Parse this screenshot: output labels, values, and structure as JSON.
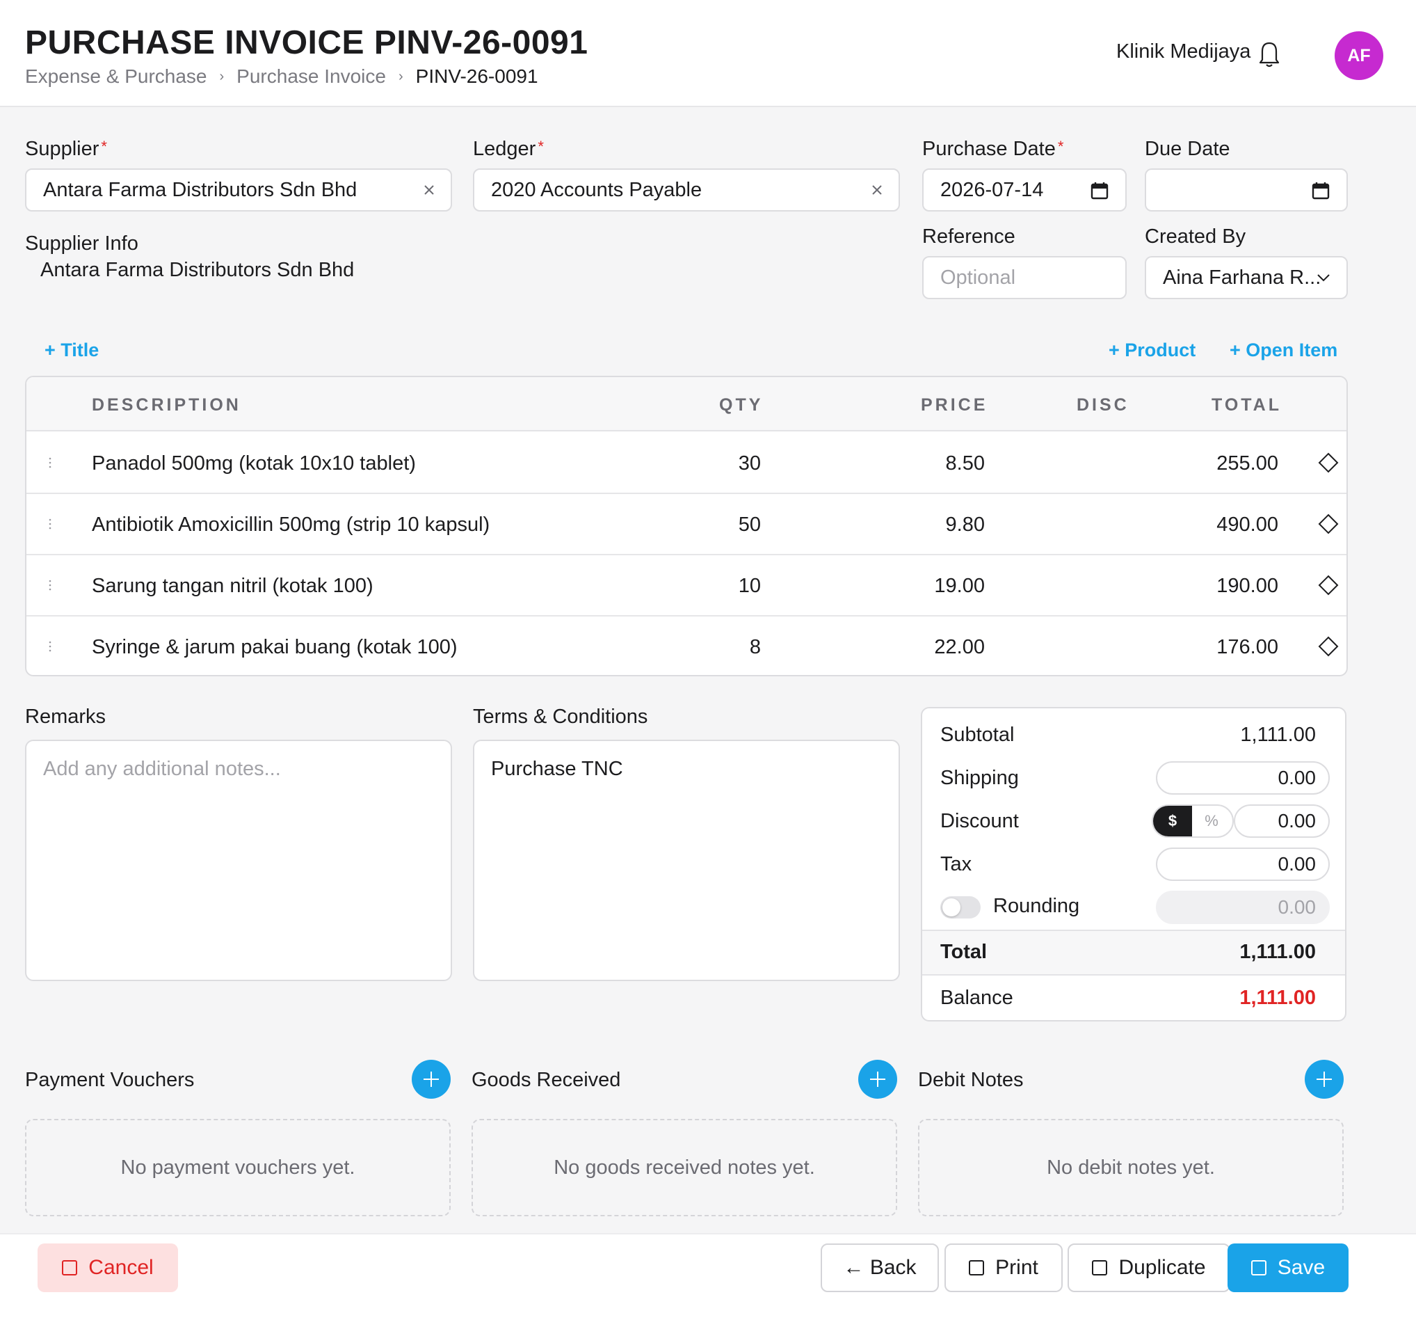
{
  "header": {
    "title": "PURCHASE INVOICE PINV-26-0091",
    "breadcrumb": [
      "Expense & Purchase",
      "Purchase Invoice",
      "PINV-26-0091"
    ],
    "clinic_name": "Klinik Medijaya",
    "avatar_initials": "AF",
    "avatar_color": "#c62ad0"
  },
  "form": {
    "supplier": {
      "label": "Supplier",
      "value": "Antara Farma Distributors Sdn Bhd"
    },
    "ledger": {
      "label": "Ledger",
      "value": "2020 Accounts Payable"
    },
    "purchase_date": {
      "label": "Purchase Date",
      "value": "2026-07-14"
    },
    "due_date": {
      "label": "Due Date",
      "value": ""
    },
    "supplier_info": {
      "label": "Supplier Info",
      "value": "Antara Farma Distributors Sdn Bhd"
    },
    "reference": {
      "label": "Reference",
      "placeholder": "Optional"
    },
    "created_by": {
      "label": "Created By",
      "value": "Aina Farhana R..."
    }
  },
  "actions": {
    "add_title": "+ Title",
    "add_product": "+ Product",
    "add_open_item": "+ Open Item"
  },
  "items_table": {
    "columns": [
      "DESCRIPTION",
      "QTY",
      "PRICE",
      "DISC",
      "TOTAL"
    ],
    "rows": [
      {
        "description": "Panadol 500mg (kotak 10x10 tablet)",
        "qty": "30",
        "price": "8.50",
        "disc": "",
        "total": "255.00"
      },
      {
        "description": "Antibiotik Amoxicillin 500mg (strip 10 kapsul)",
        "qty": "50",
        "price": "9.80",
        "disc": "",
        "total": "490.00"
      },
      {
        "description": "Sarung tangan nitril (kotak 100)",
        "qty": "10",
        "price": "19.00",
        "disc": "",
        "total": "190.00"
      },
      {
        "description": "Syringe & jarum pakai buang (kotak 100)",
        "qty": "8",
        "price": "22.00",
        "disc": "",
        "total": "176.00"
      }
    ]
  },
  "remarks": {
    "label": "Remarks",
    "placeholder": "Add any additional notes..."
  },
  "terms": {
    "label": "Terms & Conditions",
    "value": "Purchase TNC"
  },
  "totals": {
    "subtotal_label": "Subtotal",
    "subtotal": "1,111.00",
    "shipping_label": "Shipping",
    "shipping": "0.00",
    "discount_label": "Discount",
    "discount": "0.00",
    "discount_mode_fixed": "$",
    "discount_mode_percent": "%",
    "tax_label": "Tax",
    "tax": "0.00",
    "rounding_label": "Rounding",
    "rounding": "0.00",
    "total_label": "Total",
    "total": "1,111.00",
    "balance_label": "Balance",
    "balance": "1,111.00",
    "balance_color": "#e02424"
  },
  "related": {
    "payment_vouchers": {
      "title": "Payment Vouchers",
      "empty": "No payment vouchers yet."
    },
    "goods_received": {
      "title": "Goods Received",
      "empty": "No goods received notes yet."
    },
    "debit_notes": {
      "title": "Debit Notes",
      "empty": "No debit notes yet."
    }
  },
  "footer": {
    "cancel": "Cancel",
    "back": "← Back",
    "print": "Print",
    "duplicate": "Duplicate",
    "save": "Save"
  },
  "colors": {
    "accent": "#1aa3e8",
    "danger": "#e02424"
  }
}
